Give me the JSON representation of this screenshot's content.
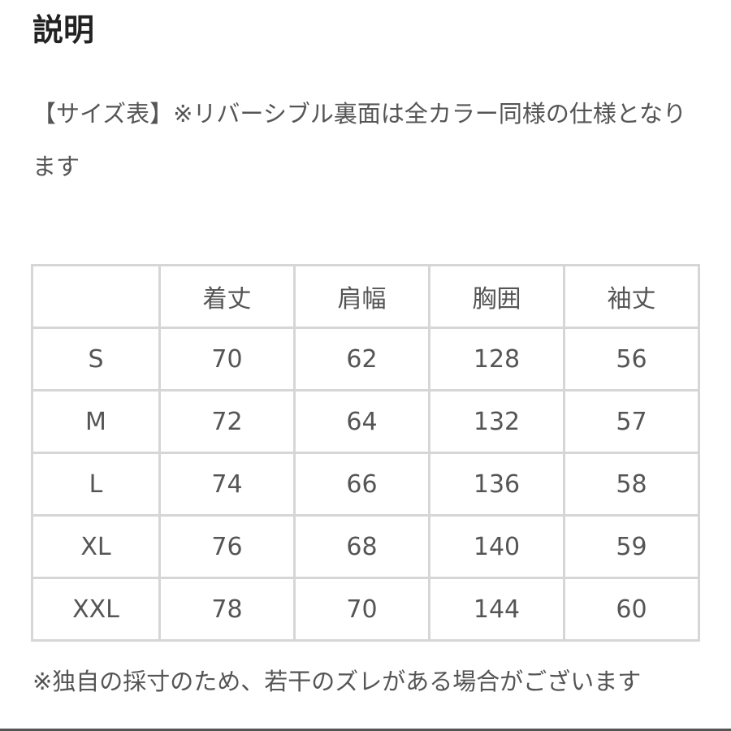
{
  "title": "説明",
  "description": "【サイズ表】※リバーシブル裏面は全カラー同様の仕様となります",
  "size_table": {
    "headers": [
      "",
      "着丈",
      "肩幅",
      "胸囲",
      "袖丈"
    ],
    "rows": [
      [
        "S",
        "70",
        "62",
        "128",
        "56"
      ],
      [
        "M",
        "72",
        "64",
        "132",
        "57"
      ],
      [
        "L",
        "74",
        "66",
        "136",
        "58"
      ],
      [
        "XL",
        "76",
        "68",
        "140",
        "59"
      ],
      [
        "XXL",
        "78",
        "70",
        "144",
        "60"
      ]
    ]
  },
  "note": "※独自の採寸のため、若干のズレがある場合がございます"
}
